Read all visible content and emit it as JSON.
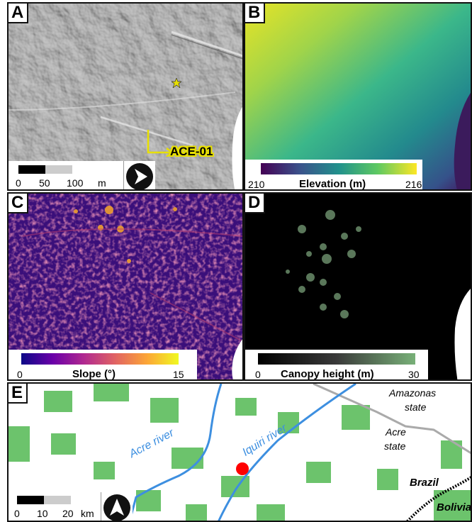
{
  "panels": {
    "a": {
      "letter": "A",
      "site_label": "ACE-01",
      "scale": {
        "t0": "0",
        "t1": "50",
        "t2": "100",
        "unit": "m"
      }
    },
    "b": {
      "letter": "B",
      "legend": {
        "min": "210",
        "max": "216",
        "title": "Elevation (m)"
      }
    },
    "c": {
      "letter": "C",
      "legend": {
        "min": "0",
        "max": "15",
        "title": "Slope (°)"
      }
    },
    "d": {
      "letter": "D",
      "legend": {
        "min": "0",
        "max": "30",
        "title": "Canopy height (m)"
      }
    },
    "e": {
      "letter": "E",
      "labels": {
        "amazonas_1": "Amazonas",
        "amazonas_2": "state",
        "acre_1": "Acre",
        "acre_2": "state",
        "brazil": "Brazil",
        "bolivia": "Bolivia",
        "acre_river": "Acre river",
        "iquiri_river": "Iquiri river"
      },
      "scale": {
        "t0": "0",
        "t1": "10",
        "t2": "20",
        "unit": "km"
      }
    }
  },
  "colors": {
    "site_marker": "#e8e000",
    "site_label_text": "#000000",
    "river": "#3d8fe0",
    "forest": "#6cc36c",
    "site_dot": "#ff0000",
    "border": "#000000"
  }
}
